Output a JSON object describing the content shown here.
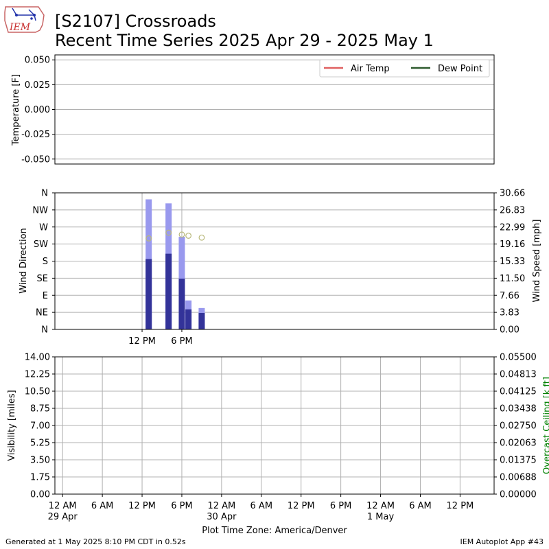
{
  "header": {
    "logo_text": "IEM",
    "title_line1": "[S2107] Crossroads",
    "title_line2": "Recent Time Series 2025 Apr 29 - 2025 May 1"
  },
  "footer": {
    "generated": "Generated at 1 May 2025 8:10 PM CDT in 0.52s",
    "app": "IEM Autoplot App #43"
  },
  "colors": {
    "air_temp": "#e06060",
    "dew_point": "#2d5a2d",
    "gust_bar": "#9999ee",
    "speed_bar": "#333399",
    "direction_marker": "#b8b87a",
    "ceiling_axis": "#008000"
  },
  "chart_data": [
    {
      "id": "temperature",
      "type": "line",
      "ylabel": "Temperature [F]",
      "ylim": [
        -0.055,
        0.055
      ],
      "yticks": [
        "0.050",
        "0.025",
        "0.000",
        "-0.025",
        "-0.050"
      ],
      "ytick_values": [
        0.05,
        0.025,
        0.0,
        -0.025,
        -0.05
      ],
      "grid": true,
      "legend_position": "top-right",
      "series": [
        {
          "name": "Air Temp",
          "x": [],
          "y": []
        },
        {
          "name": "Dew Point",
          "x": [],
          "y": []
        }
      ]
    },
    {
      "id": "wind",
      "type": "bar",
      "ylabel": "Wind Direction",
      "ylabel_right": "Wind Speed [mph]",
      "xlim_hours": [
        11,
        22
      ],
      "yticks": [
        "N",
        "NE",
        "E",
        "SE",
        "S",
        "SW",
        "W",
        "NW",
        "N"
      ],
      "ytick_values": [
        0,
        45,
        90,
        135,
        180,
        225,
        270,
        315,
        360
      ],
      "yticks_right": [
        "0.00",
        "3.83",
        "7.66",
        "11.50",
        "15.33",
        "19.16",
        "22.99",
        "26.83",
        "30.66"
      ],
      "ylim_right": [
        0,
        30.66
      ],
      "xticks": [
        "12 PM",
        "6 PM"
      ],
      "xtick_hours": [
        12,
        18
      ],
      "grid": true,
      "gust_hours": [
        13,
        16,
        18,
        19,
        21
      ],
      "gusts": [
        29.2,
        28.3,
        20.8,
        6.5,
        4.8
      ],
      "speed_hours": [
        13,
        16,
        18,
        19,
        21
      ],
      "speeds": [
        15.8,
        17.0,
        11.4,
        4.5,
        3.7
      ],
      "direction_hours": [
        13,
        16,
        18,
        19,
        21
      ],
      "directions": [
        240,
        255,
        250,
        247,
        242
      ]
    },
    {
      "id": "visibility",
      "type": "line",
      "ylabel": "Visibility [miles]",
      "ylabel_right": "Overcast Ceiling [k ft]",
      "ylim": [
        0,
        14
      ],
      "yticks": [
        "0.00",
        "1.75",
        "3.50",
        "5.25",
        "7.00",
        "8.75",
        "10.50",
        "12.25",
        "14.00"
      ],
      "ylim_right": [
        0,
        0.055
      ],
      "yticks_right": [
        "0.00000",
        "0.00688",
        "0.01375",
        "0.02063",
        "0.02750",
        "0.03438",
        "0.04125",
        "0.04813",
        "0.05500"
      ],
      "xlabel": "Plot Time Zone: America/Denver",
      "xtick_hours": [
        0,
        6,
        12,
        18,
        24,
        30,
        36,
        42,
        48,
        54,
        60
      ],
      "xticks": [
        [
          "12 AM",
          "29 Apr"
        ],
        [
          "6 AM"
        ],
        [
          "12 PM"
        ],
        [
          "6 PM"
        ],
        [
          "12 AM",
          "30 Apr"
        ],
        [
          "6 AM"
        ],
        [
          "12 PM"
        ],
        [
          "6 PM"
        ],
        [
          "12 AM",
          "1 May"
        ],
        [
          "6 AM"
        ],
        [
          "12 PM"
        ]
      ],
      "grid": true,
      "series": []
    }
  ]
}
